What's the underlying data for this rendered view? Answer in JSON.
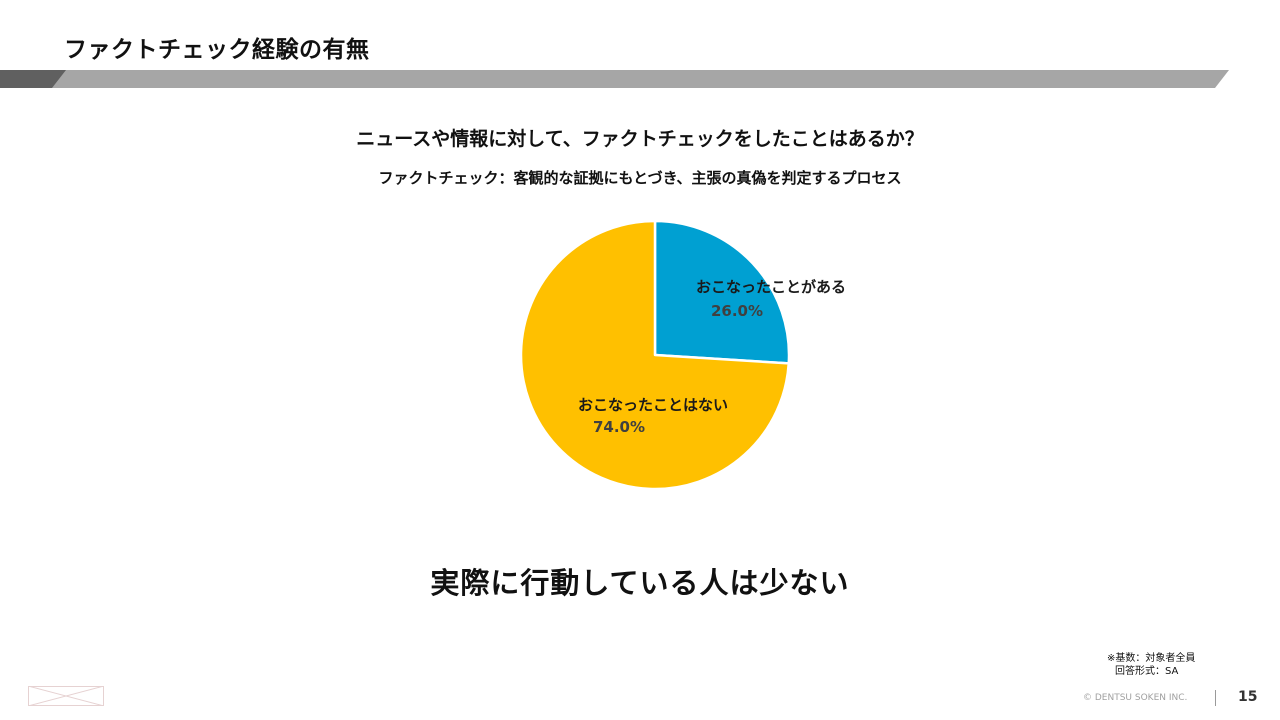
{
  "slide": {
    "title": "ファクトチェック経験の有無",
    "question": "ニュースや情報に対して、ファクトチェックをしたことはあるか？",
    "definition": "ファクトチェック：客観的な証拠にもとづき、主張の真偽を判定するプロセス",
    "conclusion": "実際に行動している人は少ない",
    "footnote_line1": "※基数：対象者全員",
    "footnote_line2": "回答形式：SA",
    "copyright": "© DENTSU SOKEN INC.",
    "page_number": "15"
  },
  "colors": {
    "title_bar_dark": "#606060",
    "title_bar_light": "#a6a6a6",
    "underline_highlight": "#f3c8cf"
  },
  "chart_data": {
    "type": "pie",
    "title": "",
    "slices": [
      {
        "label": "おこなったことがある",
        "value": 26.0,
        "value_label": "26.0%",
        "color": "#00a0d2"
      },
      {
        "label": "おこなったことはない",
        "value": 74.0,
        "value_label": "74.0%",
        "color": "#ffc000"
      }
    ],
    "start_angle_deg": 0,
    "direction": "clockwise"
  }
}
